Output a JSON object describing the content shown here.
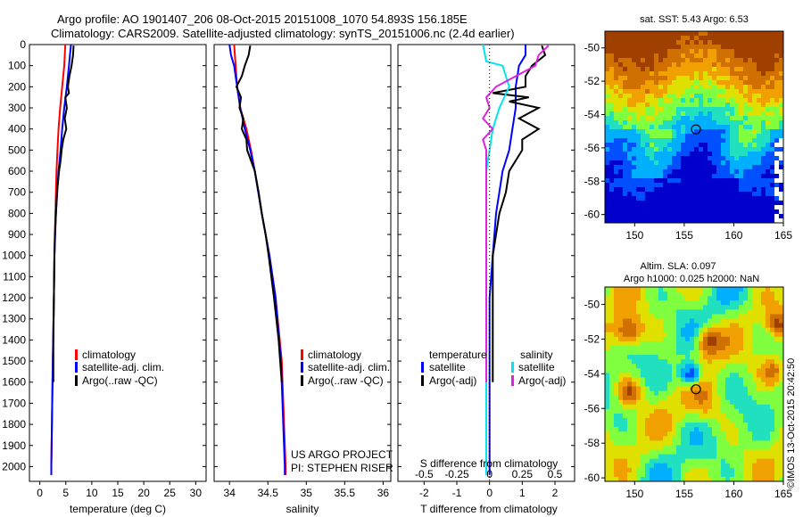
{
  "title": {
    "line1": "Argo profile: AO 1901407_206 08-Oct-2015 20151008_1070 54.893S 156.185E",
    "line2": "Climatology: CARS2009. Satellite-adjusted climatology: synTS_20151006.nc (2.4d earlier)"
  },
  "colors": {
    "climatology": "#ff0000",
    "satellite": "#0000ff",
    "argo": "#000000",
    "satellite_salinity": "#00e5ee",
    "argo_salinity": "#e020e0"
  },
  "panels": {
    "temperature": {
      "xlabel": "temperature (deg C)",
      "legend": [
        "climatology",
        "satellite-adj. clim.",
        "Argo(..raw -QC)"
      ]
    },
    "salinity": {
      "xlabel": "salinity",
      "legend": [
        "climatology",
        "satellite-adj. clim.",
        "Argo(..raw -QC)"
      ],
      "credit1": "US ARGO PROJECT",
      "credit2": "PI: STEPHEN RISER"
    },
    "difference": {
      "xlabel": "T difference from climatology",
      "top_label": "S difference from climatology",
      "legend_temp_title": "temperature",
      "legend_sal_title": "salinity",
      "legend_temp": [
        "satellite",
        "Argo(-adj)"
      ],
      "legend_sal": [
        "satellite",
        "Argo(-adj)"
      ]
    },
    "map_sst": {
      "title": "sat. SST: 5.43 Argo: 6.53"
    },
    "map_sla": {
      "title1": "Altim. SLA: 0.097",
      "title2": "Argo h1000: 0.025 h2000: NaN"
    },
    "stamp": "©IMOS 13-Oct-2015 20:42:50"
  },
  "chart_data": [
    {
      "type": "line",
      "id": "temperature",
      "xlabel": "temperature (deg C)",
      "ylabel": "",
      "xlim": [
        -2,
        32
      ],
      "ylim": [
        2070,
        0
      ],
      "xticks": [
        0,
        5,
        10,
        15,
        20,
        25,
        30
      ],
      "yticks": [
        0,
        100,
        200,
        300,
        400,
        500,
        600,
        700,
        800,
        900,
        1000,
        1100,
        1200,
        1300,
        1400,
        1500,
        1600,
        1700,
        1800,
        1900,
        2000
      ],
      "series": [
        {
          "name": "climatology",
          "color": "#ff0000",
          "depth": [
            0,
            100,
            200,
            300,
            400,
            500,
            600,
            800,
            1000,
            1200,
            1500,
            2000,
            2040
          ],
          "values": [
            4.9,
            4.7,
            4.3,
            3.9,
            3.6,
            3.4,
            3.2,
            3.0,
            2.8,
            2.7,
            2.5,
            2.2,
            2.2
          ]
        },
        {
          "name": "satellite-adj. clim.",
          "color": "#0000ff",
          "depth": [
            0,
            50,
            100,
            200,
            300,
            400,
            500,
            600,
            800,
            1000,
            1200,
            1500,
            2000,
            2040
          ],
          "values": [
            6.0,
            5.8,
            5.6,
            5.2,
            4.7,
            4.3,
            4.0,
            3.6,
            3.1,
            2.8,
            2.7,
            2.5,
            2.2,
            2.2
          ]
        },
        {
          "name": "Argo(..raw -QC)",
          "color": "#000000",
          "depth": [
            5,
            50,
            100,
            150,
            200,
            230,
            250,
            300,
            350,
            400,
            450,
            500,
            550,
            600,
            700,
            800,
            900,
            1000,
            1200,
            1400,
            1500,
            1600
          ],
          "values": [
            6.5,
            6.4,
            6.1,
            5.7,
            5.4,
            5.6,
            4.9,
            5.2,
            4.8,
            5.1,
            4.5,
            4.2,
            4.0,
            3.7,
            3.3,
            3.1,
            2.9,
            2.8,
            2.7,
            2.6,
            2.6,
            2.6
          ]
        }
      ],
      "legend": [
        "climatology",
        "satellite-adj. clim.",
        "Argo(..raw -QC)"
      ]
    },
    {
      "type": "line",
      "id": "salinity",
      "xlabel": "salinity",
      "ylabel": "",
      "xlim": [
        33.8,
        36.1
      ],
      "ylim": [
        2070,
        0
      ],
      "xticks": [
        34,
        34.5,
        35,
        35.5,
        36
      ],
      "series": [
        {
          "name": "climatology",
          "color": "#ff0000",
          "depth": [
            0,
            100,
            200,
            300,
            400,
            500,
            600,
            800,
            1000,
            1200,
            1500,
            2000,
            2040
          ],
          "values": [
            34.06,
            34.08,
            34.1,
            34.14,
            34.22,
            34.28,
            34.33,
            34.42,
            34.52,
            34.6,
            34.68,
            34.73,
            34.73
          ]
        },
        {
          "name": "satellite-adj. clim.",
          "color": "#0000ff",
          "depth": [
            0,
            50,
            100,
            200,
            300,
            400,
            500,
            600,
            800,
            1000,
            1200,
            1500,
            2000,
            2040
          ],
          "values": [
            34.0,
            34.02,
            34.06,
            34.1,
            34.14,
            34.2,
            34.27,
            34.33,
            34.42,
            34.52,
            34.6,
            34.67,
            34.72,
            34.72
          ]
        },
        {
          "name": "Argo(..raw -QC)",
          "color": "#000000",
          "depth": [
            5,
            50,
            100,
            150,
            200,
            250,
            300,
            350,
            400,
            450,
            500,
            600,
            700,
            800,
            900,
            1000,
            1200,
            1400,
            1500,
            1600
          ],
          "values": [
            34.27,
            34.25,
            34.2,
            34.16,
            34.09,
            34.15,
            34.13,
            34.18,
            34.16,
            34.22,
            34.23,
            34.33,
            34.38,
            34.42,
            34.47,
            34.51,
            34.58,
            34.64,
            34.66,
            34.68
          ]
        }
      ],
      "legend": [
        "climatology",
        "satellite-adj. clim.",
        "Argo(..raw -QC)"
      ]
    },
    {
      "type": "line",
      "id": "difference",
      "xlabel": "T difference from climatology",
      "top_label": "S difference from climatology",
      "xlim": [
        -2.8,
        2.6
      ],
      "ylim": [
        2070,
        0
      ],
      "xticks": [
        -2,
        -1,
        0,
        1,
        2
      ],
      "top_xticks": [
        "-0.5",
        "-0.25",
        "0",
        "0.25",
        "0.5"
      ],
      "series": [
        {
          "name": "satellite (temperature)",
          "color": "#0000ff",
          "depth": [
            0,
            50,
            100,
            200,
            300,
            400,
            500,
            600,
            800,
            1000,
            1200,
            1500,
            1700,
            2040
          ],
          "values": [
            1.1,
            1.1,
            0.9,
            0.8,
            0.8,
            0.7,
            0.6,
            0.4,
            0.2,
            0.1,
            0.0,
            0.0,
            0.0,
            0.0
          ]
        },
        {
          "name": "Argo(-adj) (temperature)",
          "color": "#000000",
          "depth": [
            5,
            50,
            100,
            150,
            200,
            230,
            250,
            270,
            300,
            350,
            400,
            450,
            500,
            600,
            700,
            800,
            900,
            1000,
            1200,
            1400,
            1600
          ],
          "values": [
            1.6,
            1.7,
            1.3,
            1.1,
            1.1,
            0.1,
            1.2,
            0.6,
            1.5,
            0.9,
            1.5,
            1.0,
            1.0,
            0.6,
            0.5,
            0.3,
            0.2,
            0.1,
            0.1,
            0.1,
            0.1
          ]
        },
        {
          "name": "satellite (salinity)",
          "color": "#00e5ee",
          "depth": [
            0,
            80,
            100,
            200,
            300,
            400,
            500,
            600,
            800,
            1000,
            1200,
            1500,
            1800,
            2040
          ],
          "values": [
            -0.2,
            -0.1,
            0.4,
            0.6,
            0.3,
            0.1,
            0.0,
            -0.1,
            -0.1,
            -0.1,
            -0.1,
            -0.1,
            -0.1,
            -0.1
          ]
        },
        {
          "name": "Argo(-adj) (salinity)",
          "color": "#e020e0",
          "depth": [
            5,
            50,
            100,
            150,
            200,
            250,
            300,
            350,
            400,
            450,
            500,
            600,
            700,
            800,
            900,
            1000,
            1200,
            1400,
            1500,
            1600
          ],
          "values": [
            1.8,
            1.5,
            1.4,
            0.8,
            0.2,
            -0.1,
            0.0,
            -0.2,
            0.1,
            -0.2,
            -0.1,
            -0.1,
            -0.1,
            -0.1,
            -0.1,
            -0.1,
            -0.1,
            -0.1,
            -0.1,
            -0.1
          ]
        }
      ],
      "legend": [
        "satellite",
        "Argo(-adj)",
        "satellite",
        "Argo(-adj)"
      ]
    },
    {
      "type": "heatmap",
      "id": "map_sst",
      "title": "sat. SST: 5.43 Argo: 6.53",
      "xlim": [
        147,
        165
      ],
      "ylim": [
        -60.5,
        -49
      ],
      "xticks": [
        150,
        155,
        160,
        165
      ],
      "yticks": [
        -50,
        -52,
        -54,
        -56,
        -58,
        -60
      ],
      "float_position": {
        "lon": 156.185,
        "lat": -54.893
      }
    },
    {
      "type": "heatmap",
      "id": "map_sla",
      "title": "Altim. SLA: 0.097",
      "xlim": [
        147,
        165
      ],
      "ylim": [
        -60.2,
        -49
      ],
      "xticks": [
        150,
        155,
        160,
        165
      ],
      "yticks": [
        -50,
        -52,
        -54,
        -56,
        -58,
        -60
      ],
      "float_position": {
        "lon": 156.185,
        "lat": -54.893
      }
    }
  ]
}
